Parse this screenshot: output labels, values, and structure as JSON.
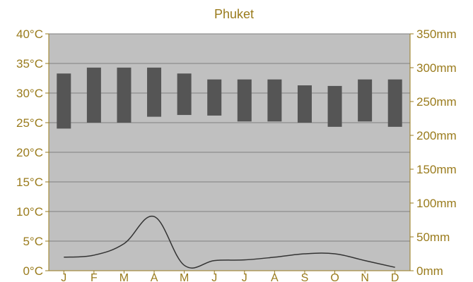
{
  "chart_data": {
    "type": "bar",
    "title": "Phuket",
    "categories": [
      "J",
      "F",
      "M",
      "A",
      "M",
      "J",
      "J",
      "A",
      "S",
      "O",
      "N",
      "D"
    ],
    "temperature_axis": {
      "ylim": [
        0,
        40
      ],
      "ticks": [
        "0°C",
        "5°C",
        "10°C",
        "15°C",
        "20°C",
        "25°C",
        "30°C",
        "35°C",
        "40°C"
      ]
    },
    "precipitation_axis": {
      "ylim": [
        0,
        350
      ],
      "ticks": [
        "0mm",
        "50mm",
        "100mm",
        "150mm",
        "200mm",
        "250mm",
        "300mm",
        "350mm"
      ]
    },
    "series": [
      {
        "kind": "floating-bar",
        "axis": "temperature",
        "low": [
          24,
          25,
          25,
          26,
          26.3,
          26.2,
          25.2,
          25.2,
          25,
          24.3,
          25.2,
          24.3
        ],
        "high": [
          33.3,
          34.3,
          34.3,
          34.3,
          33.3,
          32.3,
          32.3,
          32.3,
          31.3,
          31.2,
          32.3,
          32.3
        ]
      },
      {
        "kind": "line",
        "axis": "precipitation",
        "values": [
          20,
          23,
          40,
          80,
          8,
          15,
          16,
          20,
          25,
          25,
          15,
          5
        ]
      }
    ],
    "grid": true,
    "legend": "none",
    "colors": {
      "plot_background": "#c0c0c0",
      "bar": "#555555",
      "line": "#333333",
      "gridline": "#7f7f7f",
      "text": "#9a7b1c"
    }
  }
}
